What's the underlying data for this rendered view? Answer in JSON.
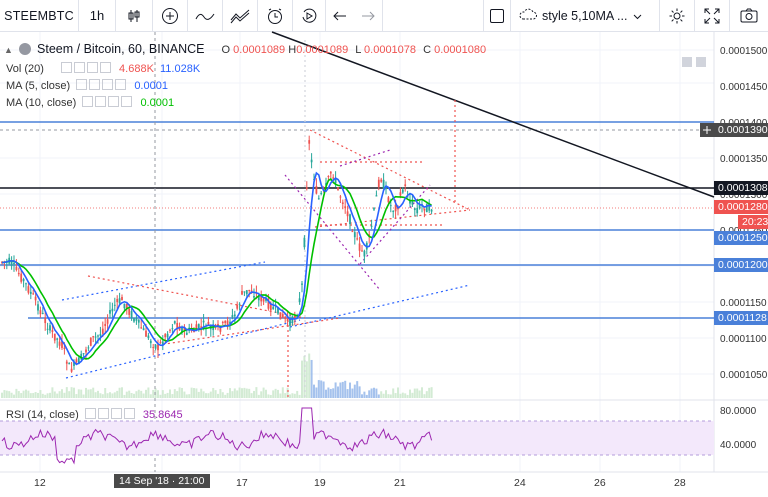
{
  "toolbar": {
    "symbol": "STEEMBTC",
    "interval": "1h",
    "style_label": "style 5,10MA ...",
    "icons": [
      "candles-icon",
      "add-indicator-icon",
      "line-icon",
      "indicators-icon",
      "alert-icon",
      "replay-icon",
      "undo-icon",
      "redo-icon",
      "square-icon",
      "cloud-icon",
      "settings-icon",
      "fullscreen-icon",
      "camera-icon"
    ]
  },
  "legend": {
    "title": "Steem / Bitcoin, 60, BINANCE",
    "o_label": "O",
    "o_val": "0.0001089",
    "h_label": "H",
    "h_val": "0.0001089",
    "l_label": "L",
    "l_val": "0.0001078",
    "c_label": "C",
    "c_val": "0.0001080",
    "vol_label": "Vol (20)",
    "vol_a": "4.688K",
    "vol_b": "11.028K",
    "ma5_label": "MA (5, close)",
    "ma5_val": "0.0001",
    "ma10_label": "MA (10, close)",
    "ma10_val": "0.0001",
    "rsi_label": "RSI (14, close)",
    "rsi_val": "35.8645"
  },
  "price_axis": [
    "0.0001500",
    "0.0001450",
    "0.0001400",
    "0.0001350",
    "0.0001300",
    "0.0001250",
    "0.0001200",
    "0.0001150",
    "0.0001100",
    "0.0001050"
  ],
  "price_labels": {
    "l1390": "0.0001390",
    "l1308": "0.0001308",
    "l1280": "0.0001280",
    "time": "20:23",
    "l1250": "0.0001250",
    "l1200": "0.0001200",
    "l1128": "0.0001128"
  },
  "rsi_axis": [
    "80.0000",
    "40.0000"
  ],
  "time_axis": [
    "12",
    "14 Sep '18 · 21:00",
    "17",
    "19",
    "21",
    "24",
    "26",
    "28"
  ],
  "colors": {
    "up": "#26a69a",
    "down": "#ef5350",
    "ma5": "#2962ff",
    "ma10": "#00c000",
    "hline": "#4a80d9"
  }
}
